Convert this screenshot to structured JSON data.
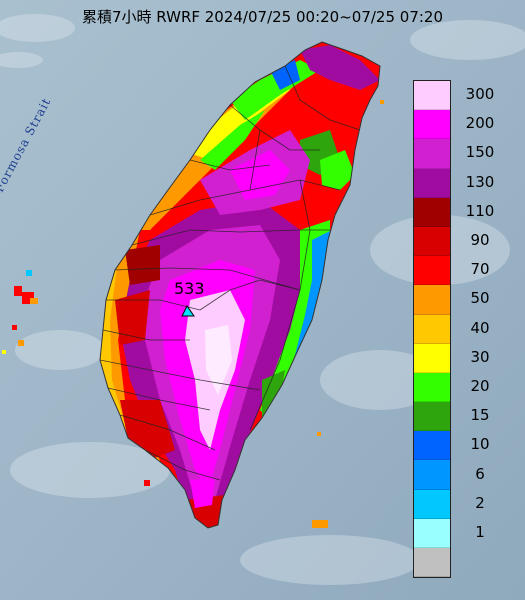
{
  "title": "累積7小時 RWRF 2024/07/25 00:20~07/25 07:20",
  "strait_label": "Formosa Strait",
  "max_value_label": "533",
  "colors": {
    "sea": "#9fb7c9",
    "land_base": "#e020e0"
  },
  "legend": {
    "items": [
      {
        "label": "300",
        "color": "#ffccff"
      },
      {
        "label": "200",
        "color": "#ff00ff"
      },
      {
        "label": "150",
        "color": "#d020d0"
      },
      {
        "label": "130",
        "color": "#a00ca0"
      },
      {
        "label": "110",
        "color": "#a00000"
      },
      {
        "label": "90",
        "color": "#d80000"
      },
      {
        "label": "70",
        "color": "#ff0000"
      },
      {
        "label": "50",
        "color": "#ff9900"
      },
      {
        "label": "40",
        "color": "#ffc800"
      },
      {
        "label": "30",
        "color": "#ffff00"
      },
      {
        "label": "20",
        "color": "#33ff00"
      },
      {
        "label": "15",
        "color": "#2ea50c"
      },
      {
        "label": "10",
        "color": "#0064ff"
      },
      {
        "label": "6",
        "color": "#0096ff"
      },
      {
        "label": "2",
        "color": "#00c8ff"
      },
      {
        "label": "1",
        "color": "#99ffff"
      },
      {
        "label": "",
        "color": "#c0c0c0"
      }
    ]
  }
}
